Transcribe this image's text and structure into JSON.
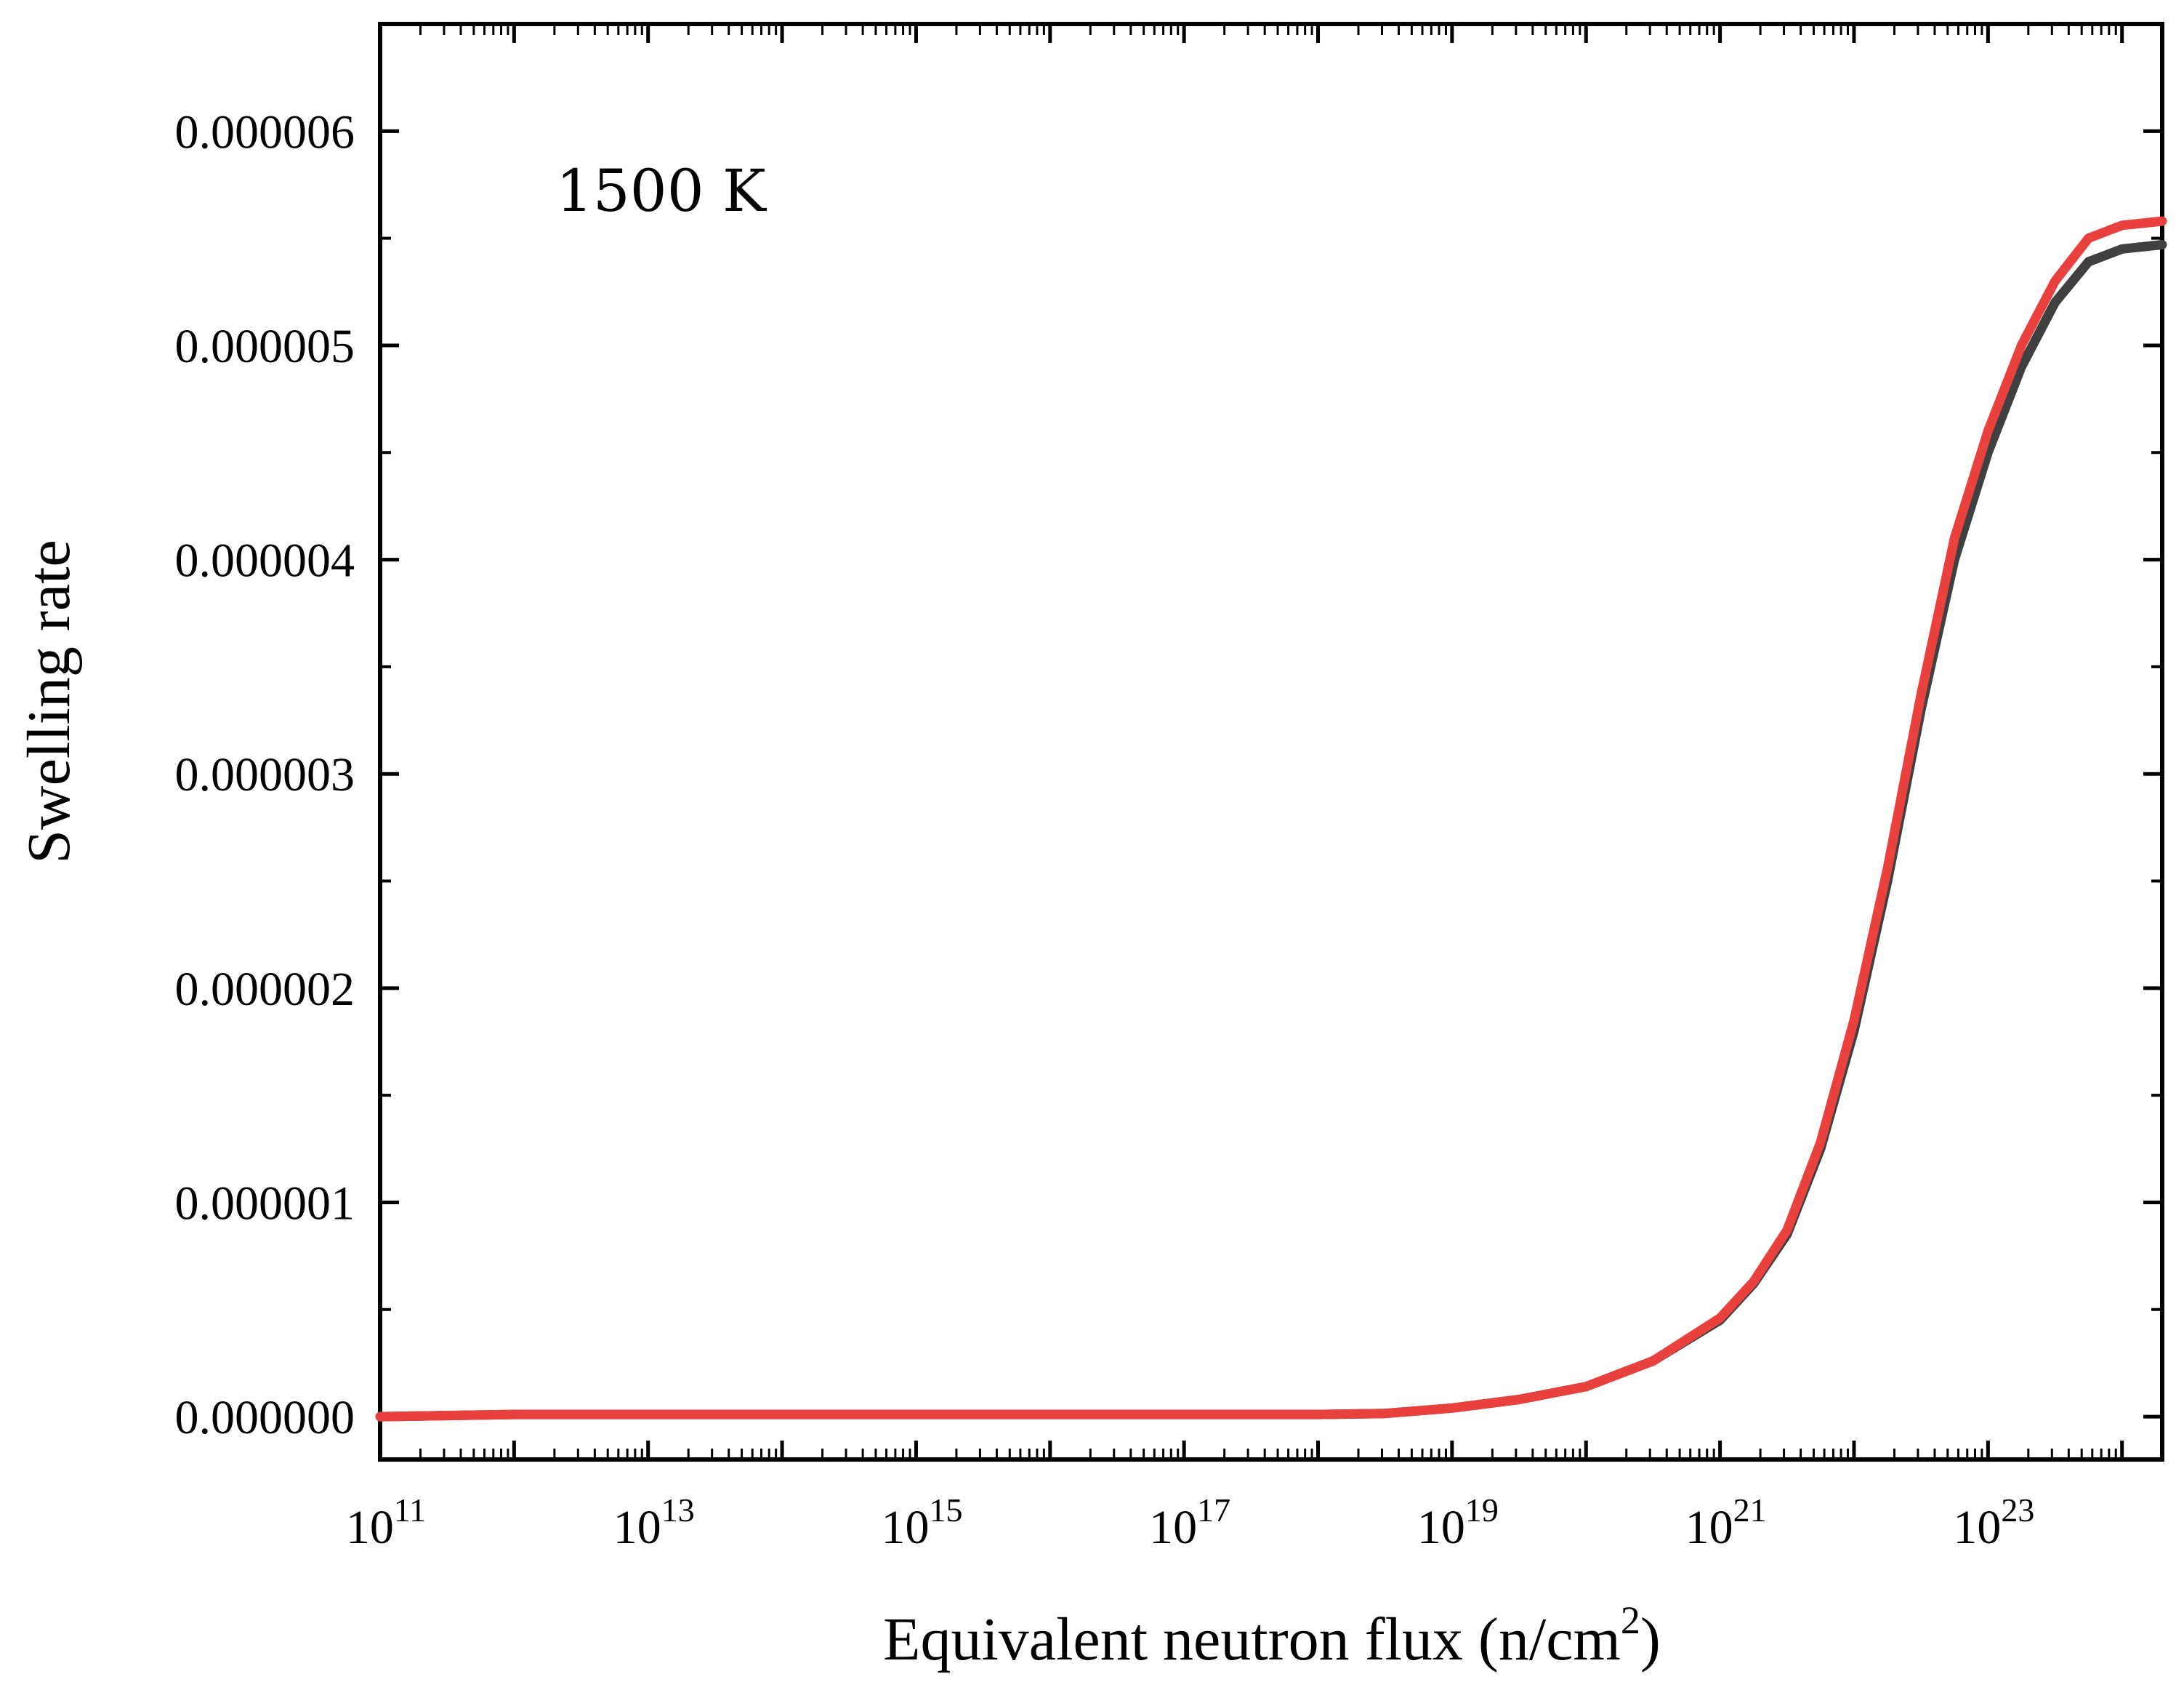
{
  "chart_data": {
    "type": "line",
    "title": "",
    "annotation": "1500 K",
    "xlabel": "Equivalent neutron flux (n/cm",
    "xlabel_sup": "2",
    "xlabel_suffix": ")",
    "ylabel": "Swelling rate",
    "x_scale": "log",
    "x_exponent_range": [
      11,
      24.3
    ],
    "ylim": [
      -2e-07,
      6.5e-06
    ],
    "x_ticks": [
      {
        "base": "10",
        "exp": "11",
        "value": 11
      },
      {
        "base": "10",
        "exp": "13",
        "value": 13
      },
      {
        "base": "10",
        "exp": "15",
        "value": 15
      },
      {
        "base": "10",
        "exp": "17",
        "value": 17
      },
      {
        "base": "10",
        "exp": "19",
        "value": 19
      },
      {
        "base": "10",
        "exp": "21",
        "value": 21
      },
      {
        "base": "10",
        "exp": "23",
        "value": 23
      }
    ],
    "y_ticks": [
      {
        "label": "0.000000",
        "value": 0
      },
      {
        "label": "0.000001",
        "value": 1e-06
      },
      {
        "label": "0.000002",
        "value": 2e-06
      },
      {
        "label": "0.000003",
        "value": 3e-06
      },
      {
        "label": "0.000004",
        "value": 4e-06
      },
      {
        "label": "0.000005",
        "value": 5e-06
      },
      {
        "label": "0.000006",
        "value": 6e-06
      }
    ],
    "grid": false,
    "series": [
      {
        "name": "series-dark",
        "color": "#404040",
        "x_log10": [
          11,
          12,
          13,
          14,
          15,
          16,
          17,
          18,
          18.5,
          19,
          19.5,
          20,
          20.5,
          21,
          21.25,
          21.5,
          21.75,
          22,
          22.25,
          22.5,
          22.75,
          23,
          23.25,
          23.5,
          23.75,
          24,
          24.15,
          24.3
        ],
        "values": [
          0,
          1e-08,
          1e-08,
          1e-08,
          1e-08,
          1e-08,
          1e-08,
          1e-08,
          1.5e-08,
          4e-08,
          8e-08,
          1.4e-07,
          2.6e-07,
          4.5e-07,
          6.2e-07,
          8.5e-07,
          1.25e-06,
          1.8e-06,
          2.5e-06,
          3.3e-06,
          4e-06,
          4.5e-06,
          4.9e-06,
          5.2e-06,
          5.39e-06,
          5.45e-06,
          5.46e-06,
          5.47e-06
        ]
      },
      {
        "name": "series-red",
        "color": "#e8413e",
        "x_log10": [
          11,
          12,
          13,
          14,
          15,
          16,
          17,
          18,
          18.5,
          19,
          19.5,
          20,
          20.5,
          21,
          21.25,
          21.5,
          21.75,
          22,
          22.25,
          22.5,
          22.75,
          23,
          23.25,
          23.5,
          23.75,
          24,
          24.15,
          24.3
        ],
        "values": [
          0,
          1e-08,
          1e-08,
          1e-08,
          1e-08,
          1e-08,
          1e-08,
          1e-08,
          1.5e-08,
          4e-08,
          8e-08,
          1.4e-07,
          2.6e-07,
          4.6e-07,
          6.3e-07,
          8.7e-07,
          1.28e-06,
          1.85e-06,
          2.56e-06,
          3.37e-06,
          4.1e-06,
          4.6e-06,
          5e-06,
          5.3e-06,
          5.5e-06,
          5.56e-06,
          5.57e-06,
          5.58e-06
        ]
      }
    ]
  }
}
